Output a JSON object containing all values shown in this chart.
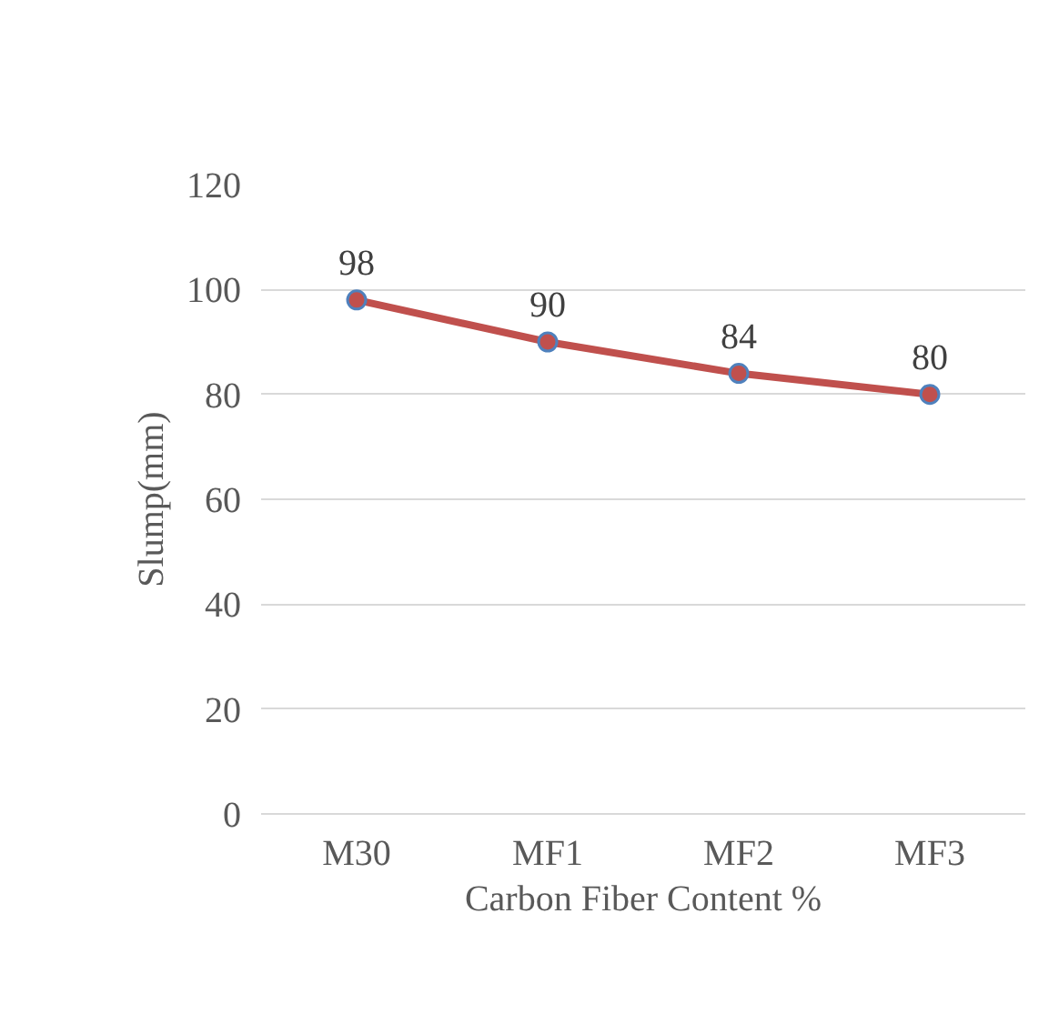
{
  "chart_data": {
    "type": "line",
    "xlabel": "Carbon Fiber Content %",
    "ylabel": "Slump(mm)",
    "categories": [
      "M30",
      "MF1",
      "MF2",
      "MF3"
    ],
    "series": [
      {
        "color": "#c0504d",
        "values": [
          98,
          90,
          84,
          80
        ]
      }
    ],
    "ylim": [
      0,
      120
    ],
    "yticks": [
      0,
      20,
      40,
      60,
      80,
      100,
      120
    ],
    "grid": "y",
    "marker": "circle",
    "data_labels": true
  }
}
